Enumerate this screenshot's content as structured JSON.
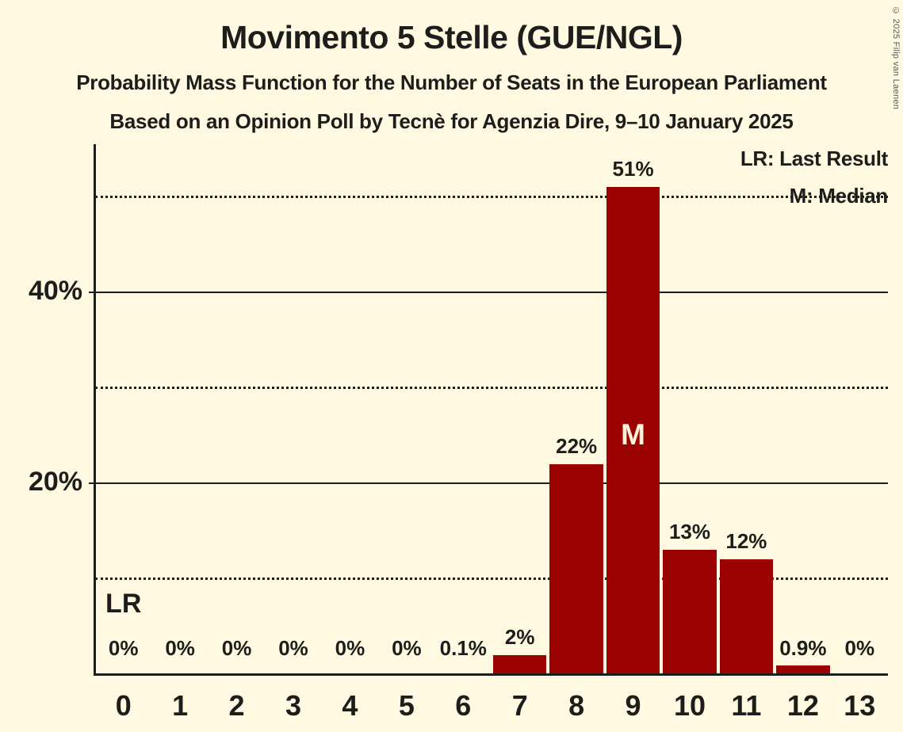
{
  "page": {
    "background_color": "#FFF9E2",
    "text_color": "#1D1D1B"
  },
  "header": {
    "title": "Movimento 5 Stelle (GUE/NGL)",
    "subtitle": "Probability Mass Function for the Number of Seats in the European Parliament",
    "source": "Based on an Opinion Poll by Tecnè for Agenzia Dire, 9–10 January 2025"
  },
  "copyright": "© 2025 Filip van Laenen",
  "legend": {
    "last_result": "LR: Last Result",
    "median": "M: Median"
  },
  "chart_data": {
    "type": "bar",
    "title": "Movimento 5 Stelle (GUE/NGL)",
    "xlabel": "",
    "ylabel": "",
    "categories": [
      "0",
      "1",
      "2",
      "3",
      "4",
      "5",
      "6",
      "7",
      "8",
      "9",
      "10",
      "11",
      "12",
      "13"
    ],
    "values": [
      0,
      0,
      0,
      0,
      0,
      0,
      0.1,
      2,
      22,
      51,
      13,
      12,
      0.9,
      0
    ],
    "bar_labels": [
      "0%",
      "0%",
      "0%",
      "0%",
      "0%",
      "0%",
      "0.1%",
      "2%",
      "22%",
      "51%",
      "13%",
      "12%",
      "0.9%",
      "0%"
    ],
    "bar_color": "#9B0302",
    "median_text_color": "#FBF2DA",
    "ylim": [
      0,
      55.4
    ],
    "yticks": [
      {
        "value": 10,
        "style": "dotted",
        "label": ""
      },
      {
        "value": 20,
        "style": "solid",
        "label": "20%"
      },
      {
        "value": 30,
        "style": "dotted",
        "label": ""
      },
      {
        "value": 40,
        "style": "solid",
        "label": "40%"
      },
      {
        "value": 50,
        "style": "dotted",
        "label": ""
      }
    ],
    "annotations": [
      {
        "id": "last-result",
        "category_index": 0,
        "label": "LR"
      },
      {
        "id": "median",
        "category_index": 9,
        "label": "M"
      }
    ],
    "grid": "horizontal",
    "legend_position": "top-right"
  }
}
